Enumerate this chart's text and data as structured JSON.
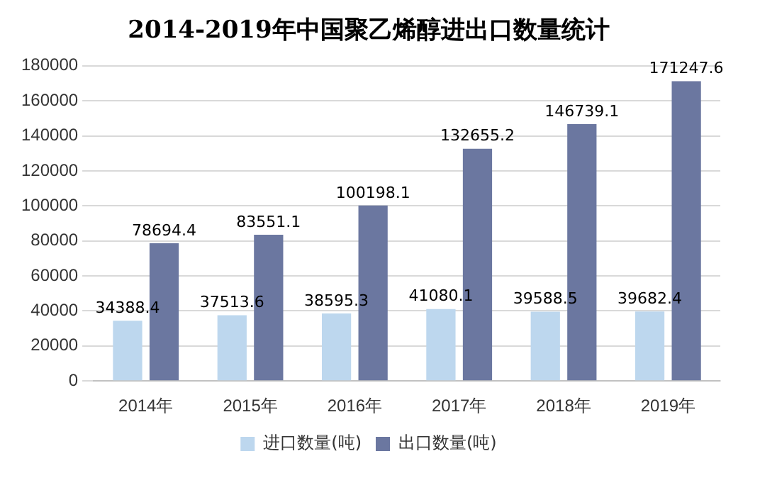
{
  "chart_data": {
    "type": "bar",
    "title": "2014-2019年中国聚乙烯醇进出口数量统计",
    "categories": [
      "2014年",
      "2015年",
      "2016年",
      "2017年",
      "2018年",
      "2019年"
    ],
    "series": [
      {
        "name": "进口数量(吨)",
        "color": "#bdd7ee",
        "values": [
          34388.4,
          37513.6,
          38595.3,
          41080.1,
          39588.5,
          39682.4
        ]
      },
      {
        "name": "出口数量(吨)",
        "color": "#6b77a0",
        "values": [
          78694.4,
          83551.1,
          100198.1,
          132655.2,
          146739.1,
          171247.6
        ]
      }
    ],
    "ylim": [
      0,
      180000
    ],
    "yticks": [
      0,
      20000,
      40000,
      60000,
      80000,
      100000,
      120000,
      140000,
      160000,
      180000
    ],
    "grid": "y",
    "legend": "bottom",
    "data_labels": true
  }
}
